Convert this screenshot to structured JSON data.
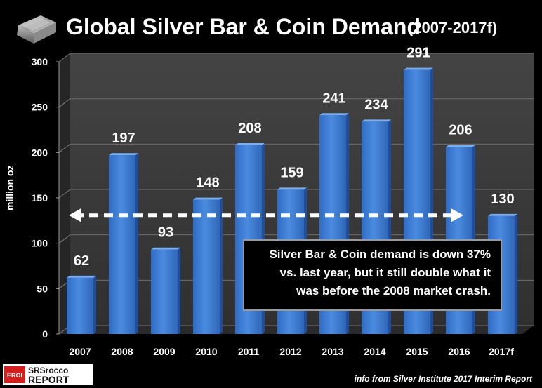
{
  "header": {
    "title": "Global Silver Bar & Coin Demand",
    "subtitle": "(2007-2017f)"
  },
  "chart_data": {
    "type": "bar",
    "title": "Global Silver Bar & Coin Demand (2007-2017f)",
    "xlabel": "",
    "ylabel": "million oz",
    "ylim": [
      0,
      300
    ],
    "yticks": [
      0,
      50,
      100,
      150,
      200,
      250,
      300
    ],
    "categories": [
      "2007",
      "2008",
      "2009",
      "2010",
      "2011",
      "2012",
      "2013",
      "2014",
      "2015",
      "2016",
      "2017f"
    ],
    "values": [
      62,
      197,
      93,
      148,
      208,
      159,
      241,
      234,
      291,
      206,
      130
    ],
    "data_labels": [
      "62",
      "197",
      "93",
      "148",
      "208",
      "159",
      "241",
      "234",
      "291",
      "206",
      "130"
    ],
    "grid": true,
    "reference_arrow": {
      "from": "2007",
      "to": "2016",
      "value": 127
    },
    "colors": {
      "bar": "#3f7fd8",
      "bar_side": "#1f4f9a",
      "bar_top": "#7aaeef",
      "wall": "#3c3c3c",
      "floor": "#2a2a2a"
    }
  },
  "annotation": {
    "lines": [
      "Silver Bar & Coin demand is down 37%",
      "vs. last year, but it still double what it",
      "was before the 2008 market crash."
    ]
  },
  "footer": {
    "brand_top": "SRSrocco",
    "brand_bottom": "REPORT",
    "brand_badge": "EROI",
    "credit": "info from Silver Institute 2017 Interim Report"
  }
}
